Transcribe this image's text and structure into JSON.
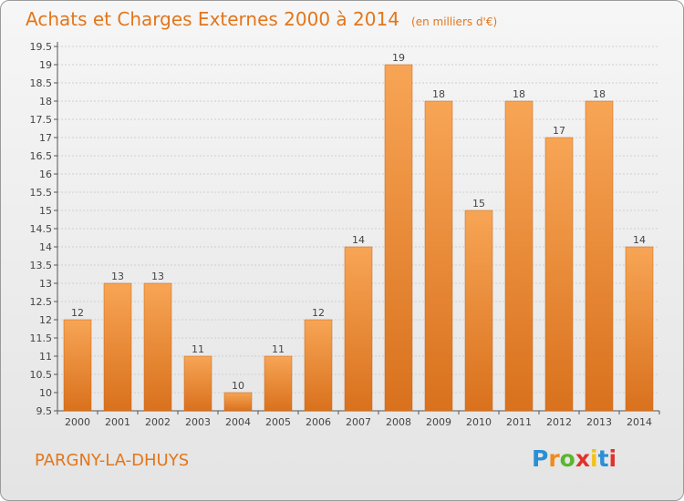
{
  "header": {
    "title": "Achats et Charges Externes 2000 à 2014",
    "subtitle": "(en milliers d'€)"
  },
  "footer": {
    "place_name": "PARGNY-LA-DHUYS",
    "logo_text": "Proxiti",
    "logo_colors": [
      "#2a8fd6",
      "#f08a1c",
      "#5cb531",
      "#e2322b",
      "#f3c21a",
      "#2a8fd6",
      "#e2322b"
    ]
  },
  "colors": {
    "accent": "#e2761b",
    "bar_top": "#f7a555",
    "bar_bottom": "#d9711d"
  },
  "chart_data": {
    "type": "bar",
    "categories": [
      "2000",
      "2001",
      "2002",
      "2003",
      "2004",
      "2005",
      "2006",
      "2007",
      "2008",
      "2009",
      "2010",
      "2011",
      "2012",
      "2013",
      "2014"
    ],
    "values": [
      12,
      13,
      13,
      11,
      10,
      11,
      12,
      14,
      19,
      18,
      15,
      18,
      17,
      18,
      14
    ],
    "data_labels": [
      "12",
      "13",
      "13",
      "11",
      "10",
      "11",
      "12",
      "14",
      "19",
      "18",
      "15",
      "18",
      "17",
      "18",
      "14"
    ],
    "title": "Achats et Charges Externes 2000 à 2014",
    "ylim": [
      9.5,
      19.5
    ],
    "yticks": [
      "9.5",
      "10",
      "10.5",
      "11",
      "11.5",
      "12",
      "12.5",
      "13",
      "13.5",
      "14",
      "14.5",
      "15",
      "15.5",
      "16",
      "16.5",
      "17",
      "17.5",
      "18",
      "18.5",
      "19",
      "19.5"
    ],
    "grid": true,
    "legend": "none"
  }
}
